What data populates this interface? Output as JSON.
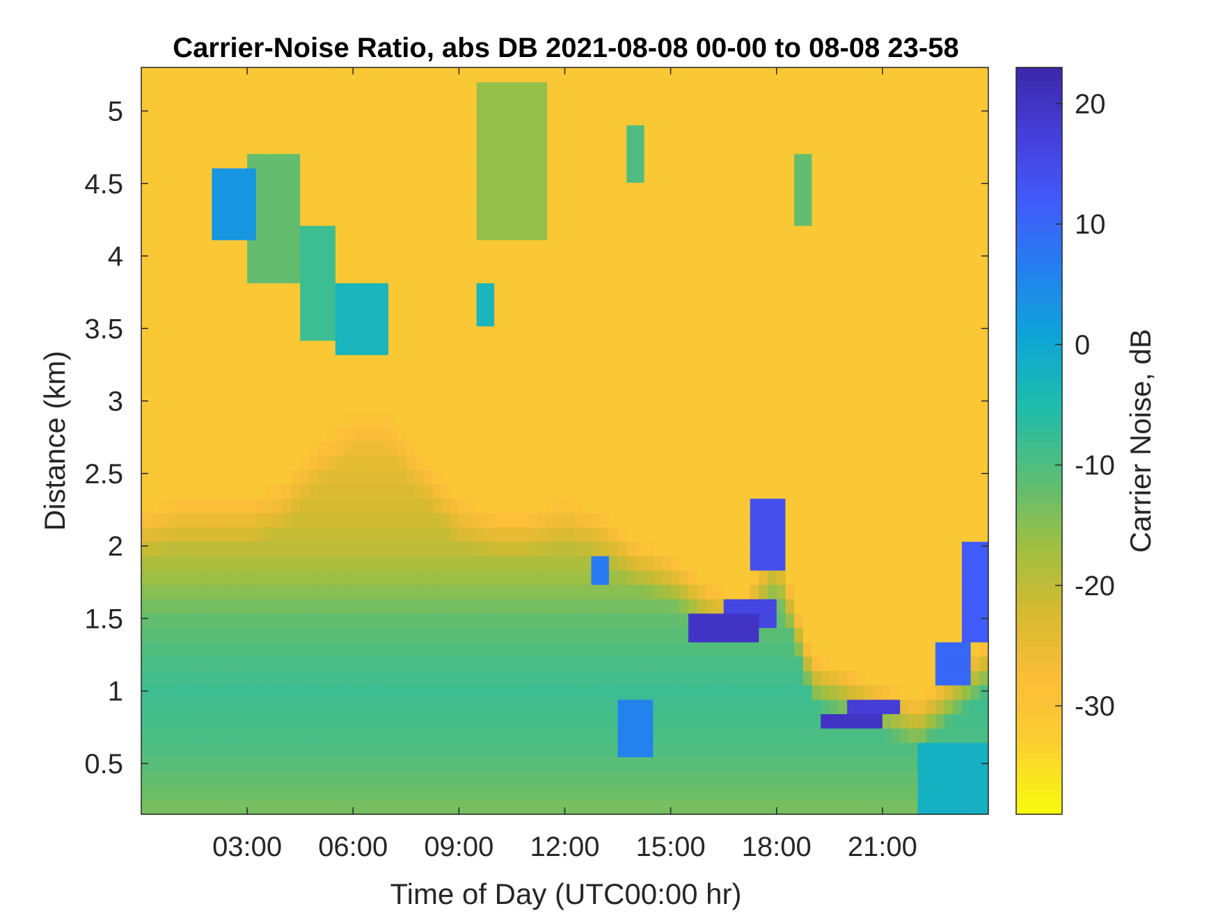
{
  "chart_data": {
    "type": "heatmap",
    "title": "Carrier-Noise Ratio, abs DB 2021-08-08 00-00 to 08-08 23-58",
    "xlabel": "Time of Day (UTC00:00 hr)",
    "ylabel": "Distance (km)",
    "colorbar_label": "Carrier Noise, dB",
    "colormap": "parula (reversed)",
    "x_unit": "hours UTC",
    "xlim": [
      0,
      24
    ],
    "ylim": [
      0.15,
      5.3
    ],
    "clim": [
      -39,
      23
    ],
    "x_ticks": [
      {
        "value": 3,
        "label": "03:00"
      },
      {
        "value": 6,
        "label": "06:00"
      },
      {
        "value": 9,
        "label": "09:00"
      },
      {
        "value": 12,
        "label": "12:00"
      },
      {
        "value": 15,
        "label": "15:00"
      },
      {
        "value": 18,
        "label": "18:00"
      },
      {
        "value": 21,
        "label": "21:00"
      }
    ],
    "y_ticks": [
      {
        "value": 0.5,
        "label": "0.5"
      },
      {
        "value": 1,
        "label": "1"
      },
      {
        "value": 1.5,
        "label": "1.5"
      },
      {
        "value": 2,
        "label": "2"
      },
      {
        "value": 2.5,
        "label": "2.5"
      },
      {
        "value": 3,
        "label": "3"
      },
      {
        "value": 3.5,
        "label": "3.5"
      },
      {
        "value": 4,
        "label": "4"
      },
      {
        "value": 4.5,
        "label": "4.5"
      },
      {
        "value": 5,
        "label": "5"
      }
    ],
    "colorbar_ticks": [
      {
        "value": -30,
        "label": "-30"
      },
      {
        "value": -20,
        "label": "-20"
      },
      {
        "value": -10,
        "label": "-10"
      },
      {
        "value": 0,
        "label": "0"
      },
      {
        "value": 10,
        "label": "10"
      },
      {
        "value": 20,
        "label": "20"
      }
    ],
    "background_db": -31,
    "boundary_layer": {
      "top_km": [
        [
          0,
          1.9
        ],
        [
          1,
          2.0
        ],
        [
          2,
          2.0
        ],
        [
          3,
          2.0
        ],
        [
          4,
          2.1
        ],
        [
          5,
          2.4
        ],
        [
          6,
          2.6
        ],
        [
          7,
          2.6
        ],
        [
          8,
          2.3
        ],
        [
          9,
          2.0
        ],
        [
          10,
          1.9
        ],
        [
          11,
          1.9
        ],
        [
          12,
          2.0
        ],
        [
          13,
          1.9
        ],
        [
          14,
          1.7
        ],
        [
          15,
          1.6
        ],
        [
          16,
          1.4
        ],
        [
          17,
          1.3
        ],
        [
          18,
          1.7
        ],
        [
          19,
          0.9
        ],
        [
          20,
          0.8
        ],
        [
          21,
          0.7
        ],
        [
          22,
          0.6
        ],
        [
          23,
          0.8
        ],
        [
          24,
          1.0
        ]
      ],
      "value_db": [
        [
          0.15,
          -14
        ],
        [
          0.6,
          -10
        ],
        [
          1.0,
          -8
        ],
        [
          1.5,
          -12
        ],
        [
          2.0,
          -20
        ],
        [
          2.5,
          -24
        ],
        [
          3.0,
          -26
        ]
      ]
    },
    "features": [
      {
        "t": [
          2.1,
          3.2
        ],
        "d": [
          4.15,
          4.6
        ],
        "value_db": 3
      },
      {
        "t": [
          3.0,
          4.5
        ],
        "d": [
          3.85,
          4.7
        ],
        "value_db": -12
      },
      {
        "t": [
          4.4,
          5.6
        ],
        "d": [
          3.4,
          4.2
        ],
        "value_db": -8
      },
      {
        "t": [
          5.4,
          6.9
        ],
        "d": [
          3.35,
          3.8
        ],
        "value_db": -3
      },
      {
        "t": [
          9.6,
          11.4
        ],
        "d": [
          4.1,
          5.2
        ],
        "value_db": -16
      },
      {
        "t": [
          9.6,
          10.0
        ],
        "d": [
          3.55,
          3.85
        ],
        "value_db": -3
      },
      {
        "t": [
          13.7,
          14.2
        ],
        "d": [
          4.5,
          4.9
        ],
        "value_db": -10
      },
      {
        "t": [
          12.7,
          13.2
        ],
        "d": [
          1.7,
          1.9
        ],
        "value_db": 7
      },
      {
        "t": [
          15.4,
          17.4
        ],
        "d": [
          1.3,
          1.5
        ],
        "value_db": 20
      },
      {
        "t": [
          16.5,
          18.1
        ],
        "d": [
          1.45,
          1.6
        ],
        "value_db": 16
      },
      {
        "t": [
          17.2,
          18.2
        ],
        "d": [
          1.8,
          2.3
        ],
        "value_db": 14
      },
      {
        "t": [
          18.4,
          19.1
        ],
        "d": [
          4.2,
          4.7
        ],
        "value_db": -12
      },
      {
        "t": [
          19.3,
          21.0
        ],
        "d": [
          0.7,
          0.85
        ],
        "value_db": 20
      },
      {
        "t": [
          20.0,
          21.6
        ],
        "d": [
          0.8,
          0.95
        ],
        "value_db": 18
      },
      {
        "t": [
          13.6,
          14.5
        ],
        "d": [
          0.5,
          0.95
        ],
        "value_db": 6
      },
      {
        "t": [
          22.4,
          23.6
        ],
        "d": [
          1.0,
          1.3
        ],
        "value_db": 10
      },
      {
        "t": [
          23.3,
          23.9
        ],
        "d": [
          1.3,
          2.0
        ],
        "value_db": 12
      },
      {
        "t": [
          22.0,
          23.9
        ],
        "d": [
          0.15,
          0.6
        ],
        "value_db": -2
      }
    ]
  }
}
